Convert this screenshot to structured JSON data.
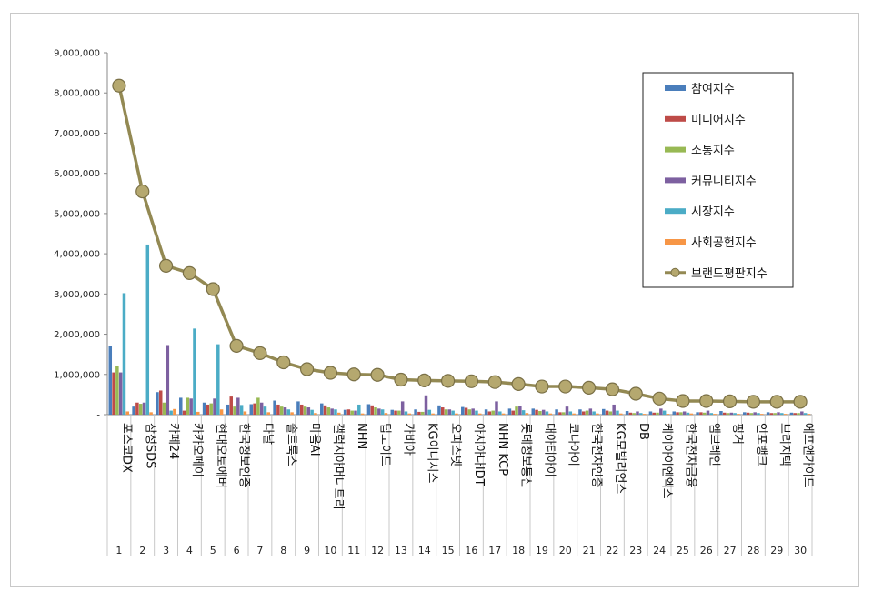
{
  "chart_data": {
    "type": "bar",
    "title": "",
    "xlabel": "",
    "ylabel": "",
    "ylim": [
      0,
      9000000
    ],
    "yticks": [
      "-",
      "1,000,000",
      "2,000,000",
      "3,000,000",
      "4,000,000",
      "5,000,000",
      "6,000,000",
      "7,000,000",
      "8,000,000",
      "9,000,000"
    ],
    "grid": false,
    "legend_position": "top-right",
    "categories": [
      "포스코DX",
      "삼성SDS",
      "카페24",
      "카카오페이",
      "현대오토에버",
      "한국정보인증",
      "다날",
      "솔트룩스",
      "마음AI",
      "갤럭시아머니트리",
      "NHN",
      "딥노이드",
      "가비아",
      "KG이니시스",
      "오파스넷",
      "아시아나IDT",
      "NHN KCP",
      "롯데정보통신",
      "대아티아이",
      "코나아이",
      "한국전자인증",
      "KG모빌리언스",
      "DB",
      "케이아이엔엑스",
      "한국전자금융",
      "엠브레인",
      "핑거",
      "인포뱅크",
      "브리지텍",
      "에프앤가이드"
    ],
    "ranks": [
      "1",
      "2",
      "3",
      "4",
      "5",
      "6",
      "7",
      "8",
      "9",
      "10",
      "11",
      "12",
      "13",
      "14",
      "15",
      "16",
      "17",
      "18",
      "19",
      "20",
      "21",
      "22",
      "23",
      "24",
      "25",
      "26",
      "27",
      "28",
      "29",
      "30"
    ],
    "series": [
      {
        "name": "참여지수",
        "color": "#4a7ebb",
        "values": [
          1700000,
          200000,
          560000,
          420000,
          300000,
          250000,
          260000,
          350000,
          330000,
          280000,
          120000,
          260000,
          120000,
          130000,
          230000,
          190000,
          130000,
          150000,
          150000,
          130000,
          130000,
          140000,
          90000,
          80000,
          80000,
          60000,
          90000,
          60000,
          60000,
          50000
        ]
      },
      {
        "name": "미디어지수",
        "color": "#be4b48",
        "values": [
          1050000,
          300000,
          600000,
          100000,
          250000,
          450000,
          280000,
          250000,
          250000,
          230000,
          130000,
          230000,
          100000,
          70000,
          180000,
          170000,
          80000,
          100000,
          120000,
          60000,
          80000,
          100000,
          50000,
          50000,
          60000,
          60000,
          50000,
          50000,
          40000,
          40000
        ]
      },
      {
        "name": "소통지수",
        "color": "#98b954",
        "values": [
          1200000,
          270000,
          300000,
          420000,
          280000,
          200000,
          420000,
          200000,
          200000,
          180000,
          100000,
          180000,
          100000,
          70000,
          130000,
          130000,
          100000,
          200000,
          90000,
          60000,
          100000,
          80000,
          40000,
          50000,
          60000,
          50000,
          40000,
          40000,
          40000,
          40000
        ]
      },
      {
        "name": "커뮤니티지수",
        "color": "#7d60a0",
        "values": [
          1050000,
          300000,
          1730000,
          400000,
          400000,
          420000,
          300000,
          180000,
          180000,
          150000,
          100000,
          150000,
          330000,
          480000,
          130000,
          150000,
          330000,
          220000,
          120000,
          200000,
          150000,
          250000,
          80000,
          150000,
          80000,
          100000,
          50000,
          60000,
          60000,
          80000
        ]
      },
      {
        "name": "시장지수",
        "color": "#4bacc6",
        "values": [
          3020000,
          4230000,
          100000,
          2140000,
          1750000,
          240000,
          200000,
          130000,
          120000,
          130000,
          250000,
          130000,
          80000,
          120000,
          100000,
          100000,
          80000,
          110000,
          80000,
          80000,
          80000,
          100000,
          40000,
          100000,
          50000,
          40000,
          40000,
          40000,
          40000,
          40000
        ]
      },
      {
        "name": "사회공헌지수",
        "color": "#f79646",
        "values": [
          80000,
          60000,
          140000,
          70000,
          130000,
          80000,
          60000,
          60000,
          40000,
          50000,
          30000,
          40000,
          30000,
          30000,
          30000,
          30000,
          30000,
          40000,
          30000,
          30000,
          30000,
          30000,
          20000,
          20000,
          30000,
          20000,
          20000,
          20000,
          20000,
          20000
        ]
      }
    ],
    "line_series": {
      "name": "브랜드평판지수",
      "color": "#938953",
      "values": [
        8180000,
        5550000,
        3700000,
        3520000,
        3120000,
        1710000,
        1530000,
        1300000,
        1130000,
        1040000,
        1000000,
        990000,
        870000,
        850000,
        840000,
        830000,
        810000,
        760000,
        700000,
        700000,
        670000,
        630000,
        520000,
        400000,
        340000,
        340000,
        330000,
        320000,
        320000,
        320000
      ]
    }
  }
}
